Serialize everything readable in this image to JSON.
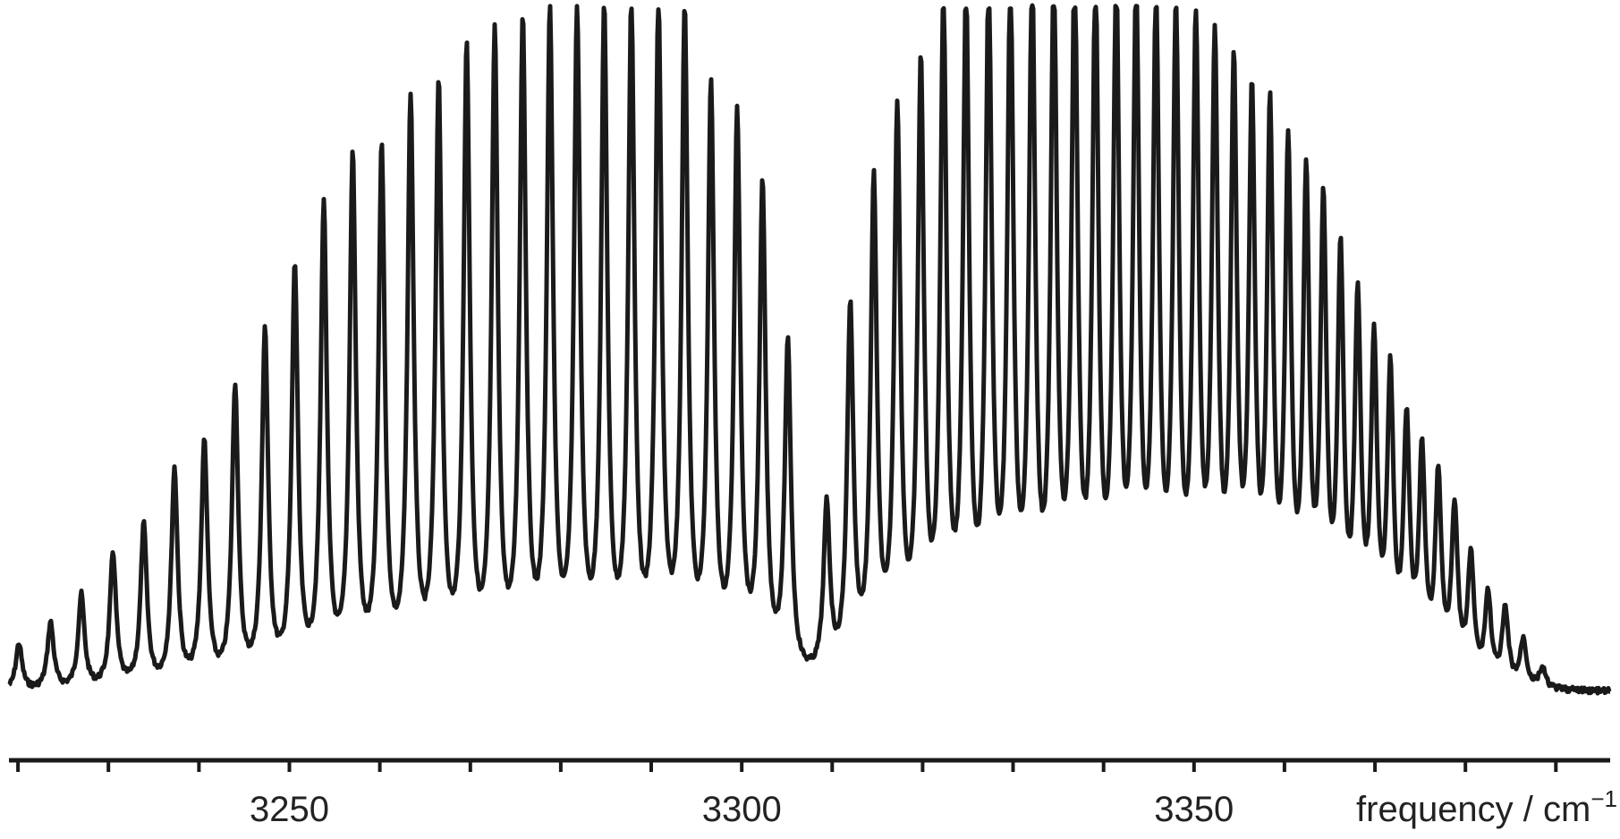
{
  "chart_data": {
    "type": "line",
    "title": "",
    "xlabel": "frequency / cm",
    "xlabel_superscript": "−1",
    "ylabel": "",
    "xlim": [
      3219,
      3396
    ],
    "x_ticks": [
      3250,
      3300,
      3350
    ],
    "x_tick_labels": [
      "3250",
      "3300",
      "3350"
    ],
    "minor_tick_spacing": 10,
    "grid": false,
    "legend": "none",
    "line_color": "#1a1a1a",
    "series": [
      {
        "peaks": [
          {
            "x": 3220.1,
            "y": 0.07
          },
          {
            "x": 3223.6,
            "y": 0.1
          },
          {
            "x": 3227.0,
            "y": 0.14
          },
          {
            "x": 3230.5,
            "y": 0.2
          },
          {
            "x": 3233.9,
            "y": 0.24
          },
          {
            "x": 3237.3,
            "y": 0.32
          },
          {
            "x": 3240.6,
            "y": 0.36
          },
          {
            "x": 3244.0,
            "y": 0.44
          },
          {
            "x": 3247.3,
            "y": 0.52
          },
          {
            "x": 3250.6,
            "y": 0.61
          },
          {
            "x": 3253.8,
            "y": 0.7
          },
          {
            "x": 3257.0,
            "y": 0.77
          },
          {
            "x": 3260.2,
            "y": 0.78
          },
          {
            "x": 3263.4,
            "y": 0.85
          },
          {
            "x": 3266.5,
            "y": 0.87
          },
          {
            "x": 3269.6,
            "y": 0.92
          },
          {
            "x": 3272.7,
            "y": 0.94
          },
          {
            "x": 3275.8,
            "y": 0.96
          },
          {
            "x": 3278.8,
            "y": 0.97
          },
          {
            "x": 3281.8,
            "y": 0.97
          },
          {
            "x": 3284.8,
            "y": 0.97
          },
          {
            "x": 3287.8,
            "y": 0.98
          },
          {
            "x": 3290.8,
            "y": 0.98
          },
          {
            "x": 3293.7,
            "y": 0.97
          },
          {
            "x": 3296.6,
            "y": 0.86
          },
          {
            "x": 3299.5,
            "y": 0.82
          },
          {
            "x": 3302.3,
            "y": 0.72
          },
          {
            "x": 3305.1,
            "y": 0.49
          },
          {
            "x": 3309.4,
            "y": 0.25
          },
          {
            "x": 3312.0,
            "y": 0.54
          },
          {
            "x": 3314.6,
            "y": 0.72
          },
          {
            "x": 3317.2,
            "y": 0.82
          },
          {
            "x": 3319.8,
            "y": 0.88
          },
          {
            "x": 3322.3,
            "y": 0.97
          },
          {
            "x": 3324.8,
            "y": 0.98
          },
          {
            "x": 3327.3,
            "y": 0.99
          },
          {
            "x": 3329.7,
            "y": 0.99
          },
          {
            "x": 3332.1,
            "y": 1.0
          },
          {
            "x": 3334.5,
            "y": 1.0
          },
          {
            "x": 3336.8,
            "y": 1.0
          },
          {
            "x": 3339.1,
            "y": 0.99
          },
          {
            "x": 3341.4,
            "y": 0.98
          },
          {
            "x": 3343.6,
            "y": 0.97
          },
          {
            "x": 3345.8,
            "y": 0.96
          },
          {
            "x": 3348.0,
            "y": 0.94
          },
          {
            "x": 3350.2,
            "y": 0.92
          },
          {
            "x": 3352.3,
            "y": 0.89
          },
          {
            "x": 3354.4,
            "y": 0.85
          },
          {
            "x": 3356.4,
            "y": 0.81
          },
          {
            "x": 3358.4,
            "y": 0.79
          },
          {
            "x": 3360.4,
            "y": 0.74
          },
          {
            "x": 3362.4,
            "y": 0.7
          },
          {
            "x": 3364.3,
            "y": 0.66
          },
          {
            "x": 3366.2,
            "y": 0.59
          },
          {
            "x": 3368.1,
            "y": 0.53
          },
          {
            "x": 3369.9,
            "y": 0.47
          },
          {
            "x": 3371.7,
            "y": 0.43
          },
          {
            "x": 3373.5,
            "y": 0.36
          },
          {
            "x": 3375.2,
            "y": 0.32
          },
          {
            "x": 3377.0,
            "y": 0.29
          },
          {
            "x": 3378.8,
            "y": 0.25
          },
          {
            "x": 3380.6,
            "y": 0.18
          },
          {
            "x": 3382.5,
            "y": 0.13
          },
          {
            "x": 3384.4,
            "y": 0.11
          },
          {
            "x": 3386.4,
            "y": 0.07
          },
          {
            "x": 3388.5,
            "y": 0.03
          }
        ]
      }
    ]
  }
}
